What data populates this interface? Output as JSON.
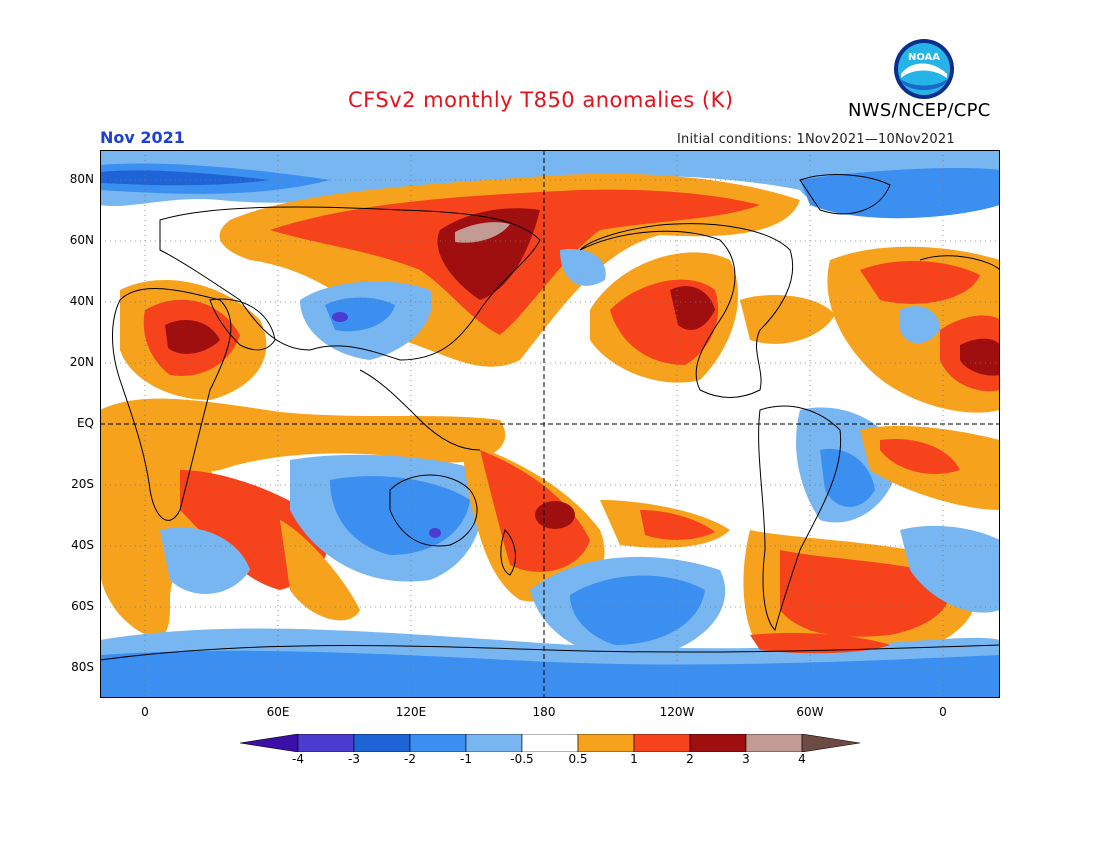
{
  "header": {
    "title": "CFSv2 monthly T850 anomalies (K)",
    "organization": "NWS/NCEP/CPC",
    "logo_text": "NOAA",
    "month_label": "Nov 2021",
    "initial_conditions": "Initial conditions: 1Nov2021—10Nov2021"
  },
  "colors": {
    "title": "#e8101a",
    "month_label": "#1f3fd1",
    "levels": {
      "lt_m4": "#3b0fa8",
      "m4_m3": "#4b3ccf",
      "m3_m2": "#1f64d6",
      "m2_m1": "#3b8ff0",
      "m1_m05": "#78b6f2",
      "m05_05": "#ffffff",
      "p05_1": "#f7a21c",
      "p1_2": "#f6431c",
      "p2_3": "#a00f10",
      "p3_4": "#c29c94",
      "gt_4": "#6e4a44"
    }
  },
  "map": {
    "lat_labels": [
      "80N",
      "60N",
      "40N",
      "20N",
      "EQ",
      "20S",
      "40S",
      "60S",
      "80S"
    ],
    "lon_labels": [
      "0",
      "60E",
      "120E",
      "180",
      "120W",
      "60W",
      "0"
    ]
  },
  "colorbar": {
    "ticks": [
      "-4",
      "-3",
      "-2",
      "-1",
      "-0.5",
      "0.5",
      "1",
      "2",
      "3",
      "4"
    ]
  }
}
